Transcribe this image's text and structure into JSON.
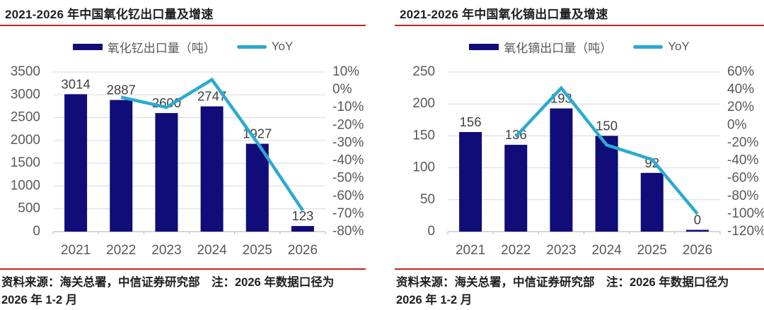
{
  "colors": {
    "bar": "#100c78",
    "line": "#2aaad2",
    "accent_red": "#c42320",
    "axis_text": "#595959",
    "value_label_text": "#404040",
    "title_text": "#1f1f1f",
    "gridline": "#d9d9d9",
    "axis_line": "#bfbfbf"
  },
  "chart_data": [
    {
      "type": "bar+line",
      "title": "2021-2026 年中国氧化钇出口量及增速",
      "categories": [
        "2021",
        "2022",
        "2023",
        "2024",
        "2025",
        "2026"
      ],
      "series": [
        {
          "name": "氧化钇出口量（吨）",
          "type": "bar",
          "axis": "left",
          "values": [
            3014,
            2887,
            2600,
            2747,
            1927,
            123
          ],
          "labels": [
            "3014",
            "2887",
            "2600",
            "2747",
            "1927",
            "123"
          ]
        },
        {
          "name": "YoY",
          "type": "line",
          "axis": "right",
          "unit": "%",
          "values": [
            null,
            -4.2,
            -9.9,
            5.7,
            -29.8,
            -68
          ]
        }
      ],
      "left_axis": {
        "min": 0,
        "max": 3500,
        "ticks": [
          "3500",
          "3000",
          "2500",
          "2000",
          "1500",
          "1000",
          "500",
          "0"
        ]
      },
      "right_axis": {
        "min": -80,
        "max": 10,
        "ticks": [
          "10%",
          "0%",
          "-10%",
          "-20%",
          "-30%",
          "-40%",
          "-50%",
          "-60%",
          "-70%",
          "-80%"
        ]
      },
      "legend": {
        "bar_label": "氧化钇出口量（吨）",
        "line_label": "YoY"
      },
      "grid": "horizontal-on",
      "legend_position": "top-center",
      "source_line1": "资料来源：海关总署，中信证券研究部　注：2026 年数据口径为",
      "source_line2": "2026 年 1-2 月"
    },
    {
      "type": "bar+line",
      "title": "2021-2026 年中国氧化镝出口量及增速",
      "categories": [
        "2021",
        "2022",
        "2023",
        "2024",
        "2025",
        "2026"
      ],
      "series": [
        {
          "name": "氧化镝出口量（吨）",
          "type": "bar",
          "axis": "left",
          "values": [
            156,
            136,
            193,
            150,
            92,
            0
          ],
          "labels": [
            "156",
            "136",
            "193",
            "150",
            "92",
            "0"
          ]
        },
        {
          "name": "YoY",
          "type": "line",
          "axis": "right",
          "unit": "%",
          "values": [
            null,
            -12.8,
            41.9,
            -22.3,
            -38.7,
            -100
          ]
        }
      ],
      "left_axis": {
        "min": 0,
        "max": 250,
        "ticks": [
          "250",
          "200",
          "150",
          "100",
          "50",
          "0"
        ]
      },
      "right_axis": {
        "min": -120,
        "max": 60,
        "ticks": [
          "60%",
          "40%",
          "20%",
          "0%",
          "-20%",
          "-40%",
          "-60%",
          "-80%",
          "-100%",
          "-120%"
        ]
      },
      "legend": {
        "bar_label": "氧化镝出口量（吨）",
        "line_label": "YoY"
      },
      "grid": "horizontal-on",
      "legend_position": "top-center",
      "source_line1": "资料来源：海关总署，中信证券研究部　注：2026 年数据口径为",
      "source_line2": "2026 年 1-2 月"
    }
  ]
}
